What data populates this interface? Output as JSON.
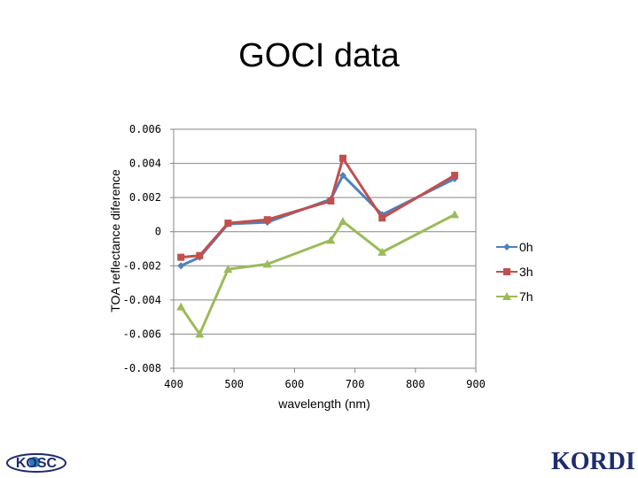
{
  "slide": {
    "title": "GOCI data"
  },
  "logos": {
    "left_text": "KOSC",
    "right_text": "KORDI"
  },
  "chart_data": {
    "type": "line",
    "title": "",
    "xlabel": "wavelength (nm)",
    "ylabel": "TOA reflectance diference",
    "xlim": [
      400,
      900
    ],
    "ylim": [
      -0.008,
      0.006
    ],
    "x_ticks": [
      "400",
      "500",
      "600",
      "700",
      "800",
      "900"
    ],
    "y_ticks": [
      "0.006",
      "0.004",
      "0.002",
      "0",
      "-0.002",
      "-0.004",
      "-0.006",
      "-0.008"
    ],
    "grid": "horizontal",
    "legend": "right",
    "x": [
      412,
      443,
      490,
      555,
      660,
      680,
      745,
      865
    ],
    "series": [
      {
        "name": "0h",
        "color": "#4f81bd",
        "marker": "diamond",
        "values": [
          -0.002,
          -0.0015,
          0.00045,
          0.00055,
          0.0019,
          0.0033,
          0.001,
          0.0031
        ]
      },
      {
        "name": "3h",
        "color": "#c0504d",
        "marker": "square",
        "values": [
          -0.0015,
          -0.0014,
          0.0005,
          0.0007,
          0.0018,
          0.0043,
          0.0008,
          0.0033
        ]
      },
      {
        "name": "7h",
        "color": "#9bbb59",
        "marker": "triangle",
        "values": [
          -0.0044,
          -0.006,
          -0.0022,
          -0.0019,
          -0.0005,
          0.0006,
          -0.0012,
          0.001
        ]
      }
    ]
  }
}
